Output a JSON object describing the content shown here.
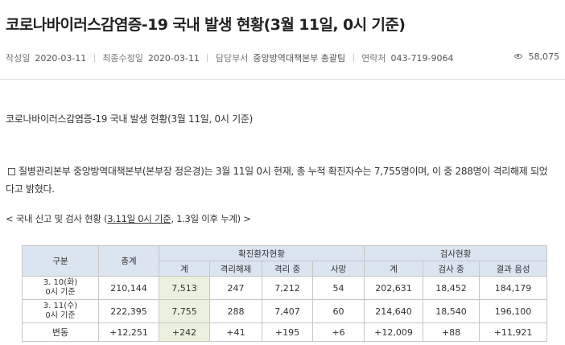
{
  "page": {
    "title": "코로나바이러스감염증-19 국내 발생 현황(3월 11일, 0시 기준)"
  },
  "meta": {
    "created_label": "작성일",
    "created_value": "2020-03-11",
    "modified_label": "최종수정일",
    "modified_value": "2020-03-11",
    "dept_label": "담당부서",
    "dept_value": "중앙방역대책본부 총괄팀",
    "contact_label": "연락처",
    "contact_value": "043-719-9064",
    "views": "58,075",
    "views_icon": "eye-icon"
  },
  "body": {
    "heading": "코로나바이러스감염증-19 국내 발생 현황(3월 11일, 0시 기준)",
    "paragraph_line1": "질병관리본부 중앙방역대책본부(본부장 정은경)는 3월 11일 0시 현재, 총 누적 확진자수는 7,755명이며, 이 중 288명이 격리해제 되었",
    "paragraph_line2": "다고 밝혔다.",
    "subhead_prefix": "< 국내 신고 및 검사 현황 (",
    "subhead_underlined": "3.11일 0시 기준",
    "subhead_suffix": ", 1.3일 이후 누계) >"
  },
  "table": {
    "header_top": {
      "category": "구분",
      "total": "총계",
      "confirmed_group": "확진환자현황",
      "testing_group": "검사현황"
    },
    "header_sub": {
      "confirmed_total": "계",
      "released": "격리해제",
      "isolated": "격리 중",
      "deaths": "사망",
      "testing_total": "계",
      "in_progress": "검사 중",
      "negative": "결과 음성"
    },
    "rows": [
      {
        "label_line1": "3. 10(화)",
        "label_line2": "0시 기준",
        "total": "210,144",
        "confirmed_total": "7,513",
        "released": "247",
        "isolated": "7,212",
        "deaths": "54",
        "testing_total": "202,631",
        "in_progress": "18,452",
        "negative": "184,179"
      },
      {
        "label_line1": "3. 11(수)",
        "label_line2": "0시 기준",
        "total": "222,395",
        "confirmed_total": "7,755",
        "released": "288",
        "isolated": "7,407",
        "deaths": "60",
        "testing_total": "214,640",
        "in_progress": "18,540",
        "negative": "196,100"
      }
    ],
    "change": {
      "label": "변동",
      "total": "+12,251",
      "confirmed_total": "+242",
      "released": "+41",
      "isolated": "+195",
      "deaths": "+6",
      "testing_total": "+12,009",
      "in_progress": "+88",
      "negative": "+11,921"
    }
  },
  "colors": {
    "header_bg": "#dbe5f1",
    "highlight_bg": "#ebf1de",
    "border": "#c6c6c6"
  }
}
